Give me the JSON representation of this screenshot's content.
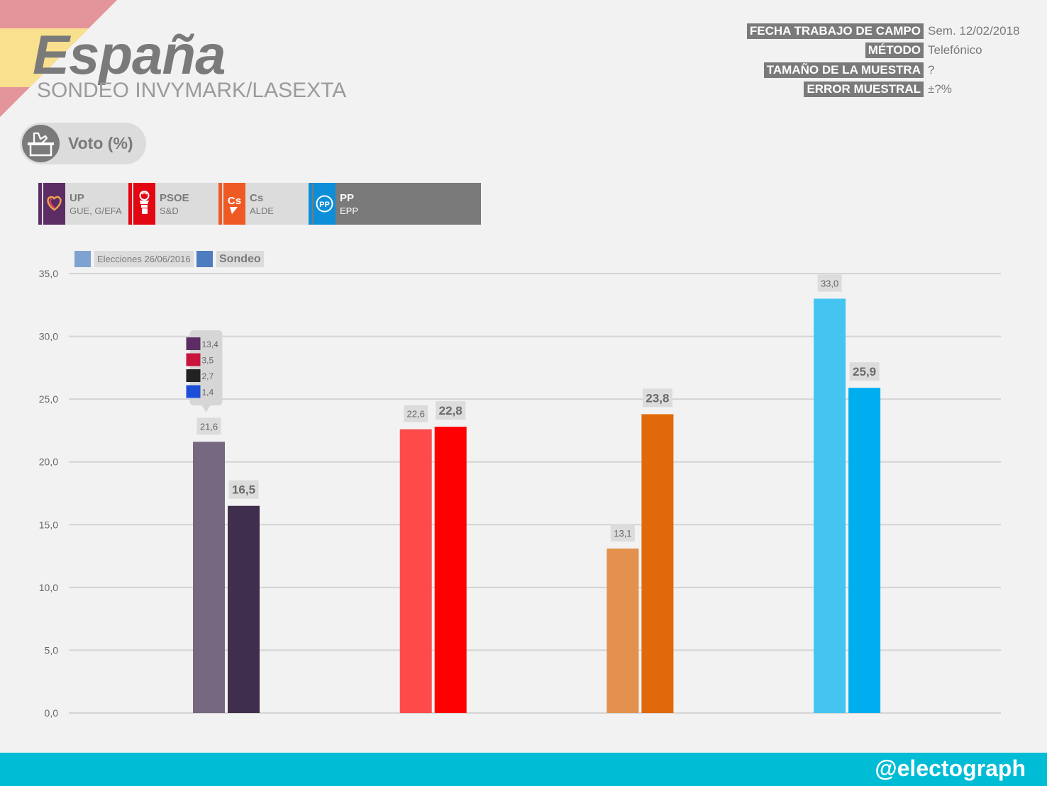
{
  "header": {
    "title": "España",
    "subtitle": "SONDEO INVYMARK/LASEXTA"
  },
  "meta": [
    {
      "label": "FECHA TRABAJO DE CAMPO",
      "value": "Sem. 12/02/2018"
    },
    {
      "label": "MÉTODO",
      "value": "Telefónico"
    },
    {
      "label": "TAMAÑO DE LA MUESTRA",
      "value": "?"
    },
    {
      "label": "ERROR MUESTRAL",
      "value": "±?%"
    }
  ],
  "section": {
    "label": "Voto (%)",
    "icon": "ballot-box-icon"
  },
  "parties": [
    {
      "name": "UP",
      "group": "GUE, G/EFA",
      "color": "#5c2d64",
      "icon": "heart-logo-icon"
    },
    {
      "name": "PSOE",
      "group": "S&D",
      "color": "#e30613",
      "icon": "rose-logo-icon"
    },
    {
      "name": "Cs",
      "group": "ALDE",
      "color": "#ef5a24",
      "icon": "cs-logo-icon"
    },
    {
      "name": "PP",
      "group": "EPP",
      "color": "#0c8ed8",
      "icon": "pp-logo-icon"
    }
  ],
  "legend": {
    "previous": {
      "label": "Elecciones 26/06/2016",
      "color": "#7fa3d0"
    },
    "poll": {
      "label": "Sondeo",
      "color": "#4d7dbf"
    }
  },
  "chart_data": {
    "type": "bar",
    "categories": [
      "UP",
      "PSOE",
      "Cs",
      "PP"
    ],
    "series": [
      {
        "name": "Elecciones 26/06/2016",
        "values": [
          21.6,
          22.6,
          13.1,
          33.0
        ],
        "colors": [
          "#766880",
          "#ff4a4a",
          "#e3914d",
          "#44c5f1"
        ]
      },
      {
        "name": "Sondeo",
        "values": [
          16.5,
          22.8,
          23.8,
          25.9
        ],
        "colors": [
          "#402e4e",
          "#ff0000",
          "#e06a0a",
          "#00aeef"
        ]
      }
    ],
    "ylim": [
      0,
      35
    ],
    "yticks": [
      "0,0",
      "5,0",
      "10,0",
      "15,0",
      "20,0",
      "25,0",
      "30,0",
      "35,0"
    ],
    "grid": true,
    "breakdown": {
      "category": "UP",
      "items": [
        {
          "value": "13,4",
          "icon": "podemos-logo-icon",
          "color": "#5c2d64"
        },
        {
          "value": "3,5",
          "icon": "en-comu-logo-icon",
          "color": "#c8143c"
        },
        {
          "value": "2,7",
          "icon": "compromis-logo-icon",
          "color": "#222222"
        },
        {
          "value": "1,4",
          "icon": "en-marea-logo-icon",
          "color": "#1d4ed8"
        }
      ]
    }
  },
  "footer": {
    "handle": "@electograph"
  }
}
